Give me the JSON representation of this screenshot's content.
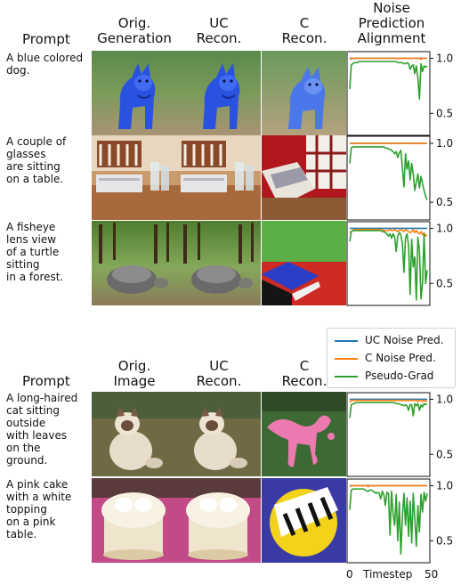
{
  "top_section": {
    "headers": {
      "prompt": "Prompt",
      "orig": "Orig.\nGeneration",
      "uc": "UC\nRecon.",
      "c": "C\nRecon.",
      "alignment": "Noise\nPrediction\nAlignment"
    },
    "rows": [
      {
        "prompt": "A blue colored\ndog."
      },
      {
        "prompt": "A couple of\nglasses\nare sitting\non a table."
      },
      {
        "prompt": "A fisheye\nlens view\nof a turtle\nsitting\nin a forest."
      }
    ]
  },
  "bottom_section": {
    "headers": {
      "prompt": "Prompt",
      "orig": "Orig.\nImage",
      "uc": "UC\nRecon.",
      "c": "C\nRecon."
    },
    "rows": [
      {
        "prompt": "A long-haired\ncat sitting\noutside\nwith leaves\non the\nground."
      },
      {
        "prompt": "A pink cake\nwith a white\ntopping\non a pink\ntable."
      }
    ]
  },
  "legend": {
    "uc": "UC Noise Pred.",
    "c": "C Noise Pred.",
    "pg": "Pseudo-Grad"
  },
  "colors": {
    "uc": "#1f77b4",
    "c": "#ff7f0e",
    "pg": "#2ca02c"
  },
  "xaxis": {
    "label": "Timestep",
    "tick_min": "0",
    "tick_max": "50"
  },
  "ytick_labels": [
    "1.0",
    "0.5"
  ],
  "chart_data": [
    {
      "type": "line",
      "x": [
        0,
        1,
        2,
        3,
        4,
        5,
        6,
        7,
        8,
        9,
        10,
        11,
        12,
        13,
        14,
        15,
        16,
        17,
        18,
        19,
        20,
        21,
        22,
        23,
        24,
        25,
        26,
        27,
        28,
        29,
        30,
        31,
        32,
        33,
        34,
        35,
        36,
        37,
        38,
        39,
        40,
        41,
        42,
        43,
        44,
        45,
        46,
        47,
        48,
        49,
        50
      ],
      "ylim": [
        0.3,
        1.06
      ],
      "series": [
        {
          "key": "uc",
          "values": [
            1,
            1,
            1,
            1,
            1,
            1,
            1,
            1,
            1,
            1,
            1,
            1,
            1,
            1,
            1,
            1,
            1,
            1,
            1,
            1,
            1,
            1,
            1,
            1,
            1,
            1,
            1,
            1,
            1,
            1,
            1,
            1,
            1,
            1,
            1,
            1,
            1,
            1,
            1,
            1,
            1,
            1,
            1,
            1,
            1,
            1,
            1,
            1,
            1,
            1,
            1
          ]
        },
        {
          "key": "c",
          "values": [
            0.99,
            0.995,
            1,
            1,
            1,
            1,
            1,
            1,
            1,
            1,
            1,
            1,
            1,
            1,
            1,
            1,
            1,
            1,
            1,
            1,
            1,
            1,
            1,
            1,
            1,
            1,
            1,
            1,
            1,
            1,
            1,
            1,
            1,
            1,
            1,
            1,
            1,
            1,
            1,
            1,
            1,
            1,
            1,
            1,
            1,
            1,
            0.99,
            1,
            1,
            1,
            1
          ]
        },
        {
          "key": "pg",
          "values": [
            0.72,
            0.94,
            0.95,
            0.96,
            0.96,
            0.96,
            0.97,
            0.97,
            0.97,
            0.97,
            0.97,
            0.97,
            0.97,
            0.97,
            0.97,
            0.97,
            0.97,
            0.97,
            0.97,
            0.97,
            0.97,
            0.97,
            0.97,
            0.97,
            0.97,
            0.97,
            0.97,
            0.97,
            0.97,
            0.97,
            0.97,
            0.96,
            0.96,
            0.96,
            0.96,
            0.95,
            0.95,
            0.96,
            0.95,
            0.9,
            0.93,
            0.94,
            0.86,
            0.93,
            0.82,
            0.63,
            0.95,
            0.88,
            0.93,
            0.92,
            0.93
          ]
        }
      ]
    },
    {
      "type": "line",
      "x": [
        0,
        1,
        2,
        3,
        4,
        5,
        6,
        7,
        8,
        9,
        10,
        11,
        12,
        13,
        14,
        15,
        16,
        17,
        18,
        19,
        20,
        21,
        22,
        23,
        24,
        25,
        26,
        27,
        28,
        29,
        30,
        31,
        32,
        33,
        34,
        35,
        36,
        37,
        38,
        39,
        40,
        41,
        42,
        43,
        44,
        45,
        46,
        47,
        48,
        49,
        50
      ],
      "ylim": [
        0.35,
        1.06
      ],
      "series": [
        {
          "key": "uc",
          "values": [
            1,
            1,
            1,
            1,
            1,
            1,
            1,
            1,
            1,
            1,
            1,
            1,
            1,
            1,
            1,
            1,
            1,
            1,
            1,
            1,
            1,
            1,
            1,
            1,
            1,
            1,
            1,
            1,
            1,
            1,
            1,
            1,
            1,
            1,
            1,
            1,
            1,
            1,
            1,
            1,
            1,
            1,
            1,
            1,
            1,
            1,
            1,
            1,
            1,
            1,
            1
          ]
        },
        {
          "key": "c",
          "values": [
            1,
            1,
            1,
            1,
            1,
            1,
            1,
            1,
            1,
            1,
            1,
            1,
            1,
            1,
            1,
            1,
            1,
            1,
            1,
            1,
            1,
            1,
            1,
            1,
            1,
            1,
            1,
            1,
            1,
            1,
            1,
            1,
            1,
            1,
            1,
            1,
            1,
            1,
            1,
            1,
            1,
            1,
            1,
            1,
            1,
            1,
            1,
            1,
            1,
            1,
            1
          ]
        },
        {
          "key": "pg",
          "values": [
            0.83,
            0.96,
            0.97,
            0.97,
            0.97,
            0.97,
            0.97,
            0.97,
            0.97,
            0.97,
            0.97,
            0.97,
            0.97,
            0.97,
            0.97,
            0.97,
            0.97,
            0.97,
            0.97,
            0.97,
            0.97,
            0.97,
            0.97,
            0.96,
            0.96,
            0.95,
            0.95,
            0.94,
            0.93,
            0.91,
            0.93,
            0.88,
            0.92,
            0.94,
            0.79,
            0.63,
            0.91,
            0.78,
            0.85,
            0.69,
            0.83,
            0.74,
            0.6,
            0.67,
            0.74,
            0.62,
            0.72,
            0.66,
            0.6,
            0.55,
            0.52
          ]
        }
      ]
    },
    {
      "type": "line",
      "x": [
        0,
        1,
        2,
        3,
        4,
        5,
        6,
        7,
        8,
        9,
        10,
        11,
        12,
        13,
        14,
        15,
        16,
        17,
        18,
        19,
        20,
        21,
        22,
        23,
        24,
        25,
        26,
        27,
        28,
        29,
        30,
        31,
        32,
        33,
        34,
        35,
        36,
        37,
        38,
        39,
        40,
        41,
        42,
        43,
        44,
        45,
        46,
        47,
        48,
        49,
        50
      ],
      "ylim": [
        0.3,
        1.06
      ],
      "series": [
        {
          "key": "uc",
          "values": [
            1,
            1,
            1,
            1,
            1,
            1,
            1,
            1,
            1,
            1,
            1,
            1,
            1,
            1,
            1,
            1,
            1,
            1,
            1,
            1,
            1,
            1,
            1,
            1,
            1,
            1,
            1,
            1,
            1,
            1,
            1,
            1,
            1,
            1,
            1,
            1,
            1,
            1,
            1,
            1,
            1,
            1,
            1,
            1,
            1,
            1,
            1,
            1,
            1,
            1,
            1
          ]
        },
        {
          "key": "c",
          "values": [
            0.96,
            0.97,
            0.98,
            0.99,
            0.99,
            0.99,
            0.99,
            0.99,
            0.99,
            0.99,
            0.99,
            0.99,
            0.99,
            0.99,
            0.99,
            0.99,
            0.99,
            0.99,
            0.99,
            0.98,
            0.99,
            0.99,
            0.98,
            0.98,
            0.98,
            0.98,
            0.99,
            0.98,
            0.98,
            0.99,
            0.98,
            0.97,
            0.98,
            0.99,
            0.98,
            0.97,
            0.99,
            0.98,
            0.97,
            0.96,
            0.97,
            0.99,
            0.96,
            0.98,
            0.96,
            0.95,
            0.97,
            0.94,
            0.96,
            0.93,
            0.94
          ]
        },
        {
          "key": "pg",
          "values": [
            0.88,
            0.97,
            0.98,
            0.98,
            0.98,
            0.98,
            0.98,
            0.98,
            0.98,
            0.98,
            0.98,
            0.98,
            0.98,
            0.98,
            0.98,
            0.98,
            0.98,
            0.98,
            0.98,
            0.98,
            0.98,
            0.97,
            0.97,
            0.96,
            0.95,
            0.93,
            0.95,
            0.91,
            0.95,
            0.92,
            0.79,
            0.93,
            0.96,
            0.94,
            0.86,
            0.6,
            0.91,
            0.95,
            0.84,
            0.4,
            0.9,
            0.65,
            0.74,
            0.35,
            0.92,
            0.8,
            0.36,
            0.5,
            0.95,
            0.5,
            0.62
          ]
        }
      ]
    },
    {
      "type": "line",
      "x": [
        0,
        1,
        2,
        3,
        4,
        5,
        6,
        7,
        8,
        9,
        10,
        11,
        12,
        13,
        14,
        15,
        16,
        17,
        18,
        19,
        20,
        21,
        22,
        23,
        24,
        25,
        26,
        27,
        28,
        29,
        30,
        31,
        32,
        33,
        34,
        35,
        36,
        37,
        38,
        39,
        40,
        41,
        42,
        43,
        44,
        45,
        46,
        47,
        48,
        49,
        50
      ],
      "ylim": [
        0.3,
        1.06
      ],
      "series": [
        {
          "key": "uc",
          "values": [
            1,
            1,
            1,
            1,
            1,
            1,
            1,
            1,
            1,
            1,
            1,
            1,
            1,
            1,
            1,
            1,
            1,
            1,
            1,
            1,
            1,
            1,
            1,
            1,
            1,
            1,
            1,
            1,
            1,
            1,
            1,
            1,
            1,
            1,
            1,
            1,
            1,
            1,
            1,
            1,
            1,
            1,
            1,
            1,
            1,
            1,
            1,
            1,
            1,
            1,
            1
          ]
        },
        {
          "key": "c",
          "values": [
            0.97,
            0.99,
            0.99,
            0.99,
            0.99,
            0.99,
            0.99,
            0.99,
            0.99,
            0.99,
            0.99,
            0.99,
            0.99,
            0.99,
            0.99,
            0.99,
            0.99,
            0.99,
            0.99,
            0.99,
            0.99,
            0.99,
            0.99,
            0.99,
            0.99,
            0.99,
            0.99,
            0.99,
            0.99,
            0.99,
            0.99,
            0.99,
            0.99,
            0.99,
            0.99,
            0.99,
            0.99,
            0.99,
            0.99,
            0.99,
            0.99,
            0.99,
            0.99,
            0.99,
            0.98,
            0.99,
            0.99,
            0.98,
            0.99,
            0.98,
            0.99
          ]
        },
        {
          "key": "pg",
          "values": [
            0.83,
            0.95,
            0.96,
            0.96,
            0.97,
            0.97,
            0.97,
            0.97,
            0.97,
            0.97,
            0.97,
            0.97,
            0.97,
            0.97,
            0.97,
            0.97,
            0.97,
            0.97,
            0.97,
            0.97,
            0.97,
            0.97,
            0.97,
            0.97,
            0.97,
            0.97,
            0.97,
            0.97,
            0.97,
            0.97,
            0.96,
            0.96,
            0.96,
            0.95,
            0.95,
            0.94,
            0.95,
            0.94,
            0.9,
            0.95,
            0.95,
            0.85,
            0.96,
            0.94,
            0.96,
            0.9,
            0.95,
            0.93,
            0.96,
            0.95,
            0.96
          ]
        }
      ]
    },
    {
      "type": "line",
      "x": [
        0,
        1,
        2,
        3,
        4,
        5,
        6,
        7,
        8,
        9,
        10,
        11,
        12,
        13,
        14,
        15,
        16,
        17,
        18,
        19,
        20,
        21,
        22,
        23,
        24,
        25,
        26,
        27,
        28,
        29,
        30,
        31,
        32,
        33,
        34,
        35,
        36,
        37,
        38,
        39,
        40,
        41,
        42,
        43,
        44,
        45,
        46,
        47,
        48,
        49,
        50
      ],
      "ylim": [
        0.3,
        1.06
      ],
      "series": [
        {
          "key": "uc",
          "values": [
            1,
            1,
            1,
            1,
            1,
            1,
            1,
            1,
            1,
            1,
            1,
            1,
            1,
            1,
            1,
            1,
            1,
            1,
            1,
            1,
            1,
            1,
            1,
            1,
            1,
            1,
            1,
            1,
            1,
            1,
            1,
            1,
            1,
            1,
            1,
            1,
            1,
            1,
            1,
            1,
            1,
            1,
            1,
            1,
            1,
            1,
            1,
            1,
            1,
            1,
            1
          ]
        },
        {
          "key": "c",
          "values": [
            0.99,
            1,
            1,
            1,
            1,
            1,
            1,
            1,
            1,
            1,
            1,
            1,
            0.99,
            1,
            1,
            1,
            1,
            1,
            1,
            1,
            1,
            1,
            1,
            1,
            1,
            1,
            1,
            1,
            1,
            1,
            1,
            1,
            1,
            1,
            1,
            1,
            1,
            1,
            1,
            1,
            1,
            1,
            1,
            1,
            1,
            1,
            1,
            1,
            1,
            1,
            1
          ]
        },
        {
          "key": "pg",
          "values": [
            0.78,
            0.96,
            0.97,
            0.97,
            0.97,
            0.97,
            0.97,
            0.97,
            0.97,
            0.97,
            0.96,
            0.95,
            0.95,
            0.96,
            0.96,
            0.95,
            0.94,
            0.93,
            0.94,
            0.93,
            0.88,
            0.95,
            0.92,
            0.82,
            0.94,
            0.93,
            0.55,
            0.95,
            0.74,
            0.64,
            0.92,
            0.5,
            0.85,
            0.38,
            0.72,
            0.93,
            0.64,
            0.89,
            0.54,
            0.86,
            0.48,
            0.93,
            0.7,
            0.45,
            0.82,
            0.58,
            0.92,
            0.76,
            0.94,
            0.86,
            0.93
          ]
        }
      ]
    }
  ]
}
